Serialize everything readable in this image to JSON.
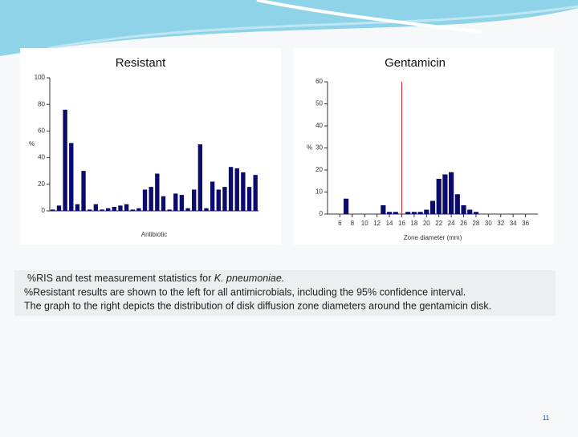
{
  "chart_data": [
    {
      "type": "bar",
      "title": "Resistant",
      "ylabel": "%",
      "xlabel": "Antibiotic",
      "color": "#0b0b6e",
      "categories": [
        null,
        null,
        null,
        null,
        null,
        null,
        null,
        null,
        null,
        null,
        null,
        null,
        null,
        null,
        null,
        null,
        null,
        null,
        null,
        null,
        null,
        null,
        null,
        null,
        null,
        null,
        null,
        null,
        null,
        null,
        null,
        null,
        null,
        null
      ],
      "values": [
        1,
        4,
        76,
        51,
        5,
        30,
        1,
        5,
        1,
        2,
        3,
        4,
        5,
        1,
        2,
        16,
        18,
        28,
        11,
        1,
        13,
        12,
        2,
        16,
        50,
        2,
        22,
        16,
        18,
        33,
        32,
        29,
        18,
        27
      ],
      "ylim": [
        0,
        100
      ],
      "yticks": [
        0,
        20,
        40,
        60,
        80,
        100
      ]
    },
    {
      "type": "histogram",
      "title": "Gentamicin",
      "ylabel": "%",
      "xlabel": "Zone diameter (mm)",
      "color": "#0b0b6e",
      "x": [
        7,
        13,
        14,
        15,
        17,
        18,
        19,
        20,
        21,
        22,
        23,
        24,
        25,
        26,
        27,
        28
      ],
      "values": [
        7,
        4,
        1,
        1,
        1,
        1,
        1,
        2,
        6,
        16,
        18,
        19,
        9,
        4,
        2,
        1
      ],
      "reference_line": 16,
      "reference_color": "#d42020",
      "xlim": [
        4,
        38
      ],
      "xticks": [
        6,
        8,
        10,
        12,
        14,
        16,
        18,
        20,
        22,
        24,
        26,
        28,
        30,
        32,
        34,
        36
      ],
      "ylim": [
        0,
        60
      ],
      "yticks": [
        0,
        10,
        20,
        30,
        40,
        50,
        60
      ]
    }
  ],
  "caption": {
    "line1": "%RIS and test measurement statistics for ",
    "line1_italic": "K. pneumoniae.",
    "line2": "%Resistant results are shown to the left for all antimicrobials, including the 95% confidence interval.",
    "line3": "The graph to the right depicts the distribution of disk diffusion zone diameters around the gentamicin disk."
  },
  "page_number": "11"
}
